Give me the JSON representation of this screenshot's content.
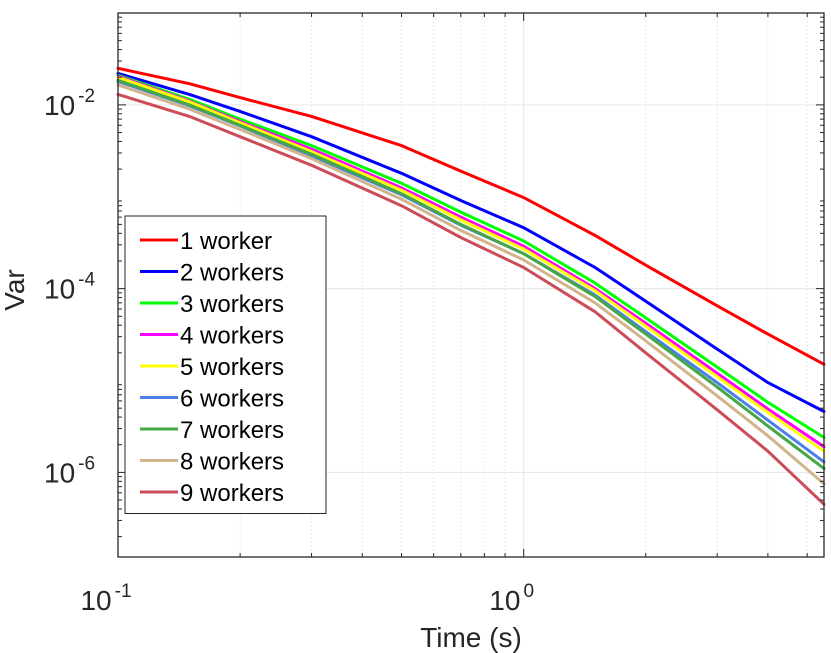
{
  "chart_data": {
    "type": "line",
    "xlabel": "Time (s)",
    "ylabel": "Var",
    "xscale": "log",
    "yscale": "log",
    "xlim": [
      0.1,
      5.5
    ],
    "ylim": [
      1.2e-07,
      0.1
    ],
    "x_ticks": [
      {
        "value": 0.1,
        "base": "10",
        "exp": "-1"
      },
      {
        "value": 1,
        "base": "10",
        "exp": "0"
      }
    ],
    "y_ticks": [
      {
        "value": 0.01,
        "base": "10",
        "exp": "-2"
      },
      {
        "value": 0.0001,
        "base": "10",
        "exp": "-4"
      },
      {
        "value": 1e-06,
        "base": "10",
        "exp": "-6"
      }
    ],
    "grid": true,
    "minor_grid": true,
    "legend_position": "bottom-left",
    "x": [
      0.1,
      0.15,
      0.2,
      0.3,
      0.5,
      0.7,
      1.0,
      1.5,
      2.0,
      3.0,
      4.0,
      5.5
    ],
    "series": [
      {
        "name": "1 worker",
        "color": "#ff0000",
        "values": [
          0.025,
          0.017,
          0.012,
          0.0075,
          0.0036,
          0.0019,
          0.00098,
          0.00038,
          0.00018,
          6.5e-05,
          3.2e-05,
          1.5e-05
        ]
      },
      {
        "name": "2 workers",
        "color": "#0000ff",
        "values": [
          0.022,
          0.013,
          0.0085,
          0.0045,
          0.0018,
          0.00091,
          0.00046,
          0.00017,
          7.3e-05,
          2.2e-05,
          9.5e-06,
          4.6e-06
        ]
      },
      {
        "name": "3 workers",
        "color": "#00ff00",
        "values": [
          0.021,
          0.0115,
          0.007,
          0.0036,
          0.0014,
          0.00068,
          0.00033,
          0.000115,
          4.8e-05,
          1.4e-05,
          5.8e-06,
          2.4e-06
        ]
      },
      {
        "name": "4 workers",
        "color": "#ff00ff",
        "values": [
          0.0205,
          0.011,
          0.0066,
          0.0033,
          0.00125,
          0.0006,
          0.00029,
          0.0001,
          4.2e-05,
          1.2e-05,
          4.9e-06,
          1.9e-06
        ]
      },
      {
        "name": "5 workers",
        "color": "#ffff00",
        "values": [
          0.02,
          0.0108,
          0.0064,
          0.0031,
          0.00118,
          0.00056,
          0.00027,
          9.5e-05,
          3.9e-05,
          1.1e-05,
          4.5e-06,
          1.7e-06
        ]
      },
      {
        "name": "6 workers",
        "color": "#4d80e6",
        "values": [
          0.018,
          0.0098,
          0.0059,
          0.0028,
          0.00105,
          0.00049,
          0.00024,
          8.5e-05,
          3.4e-05,
          9.5e-06,
          3.7e-06,
          1.3e-06
        ]
      },
      {
        "name": "7 workers",
        "color": "#45a845",
        "values": [
          0.0185,
          0.01,
          0.006,
          0.0029,
          0.00108,
          0.0005,
          0.00024,
          8.2e-05,
          3.2e-05,
          8.5e-06,
          3.2e-06,
          1.1e-06
        ]
      },
      {
        "name": "8 workers",
        "color": "#d2b48c",
        "values": [
          0.0165,
          0.009,
          0.0054,
          0.0026,
          0.00094,
          0.00043,
          0.000205,
          7e-05,
          2.7e-05,
          6.8e-06,
          2.5e-06,
          7.5e-07
        ]
      },
      {
        "name": "9 workers",
        "color": "#cc4d59",
        "values": [
          0.013,
          0.0075,
          0.0045,
          0.0022,
          0.0008,
          0.00036,
          0.00017,
          5.6e-05,
          2e-05,
          4.8e-06,
          1.7e-06,
          4.5e-07
        ]
      }
    ]
  }
}
